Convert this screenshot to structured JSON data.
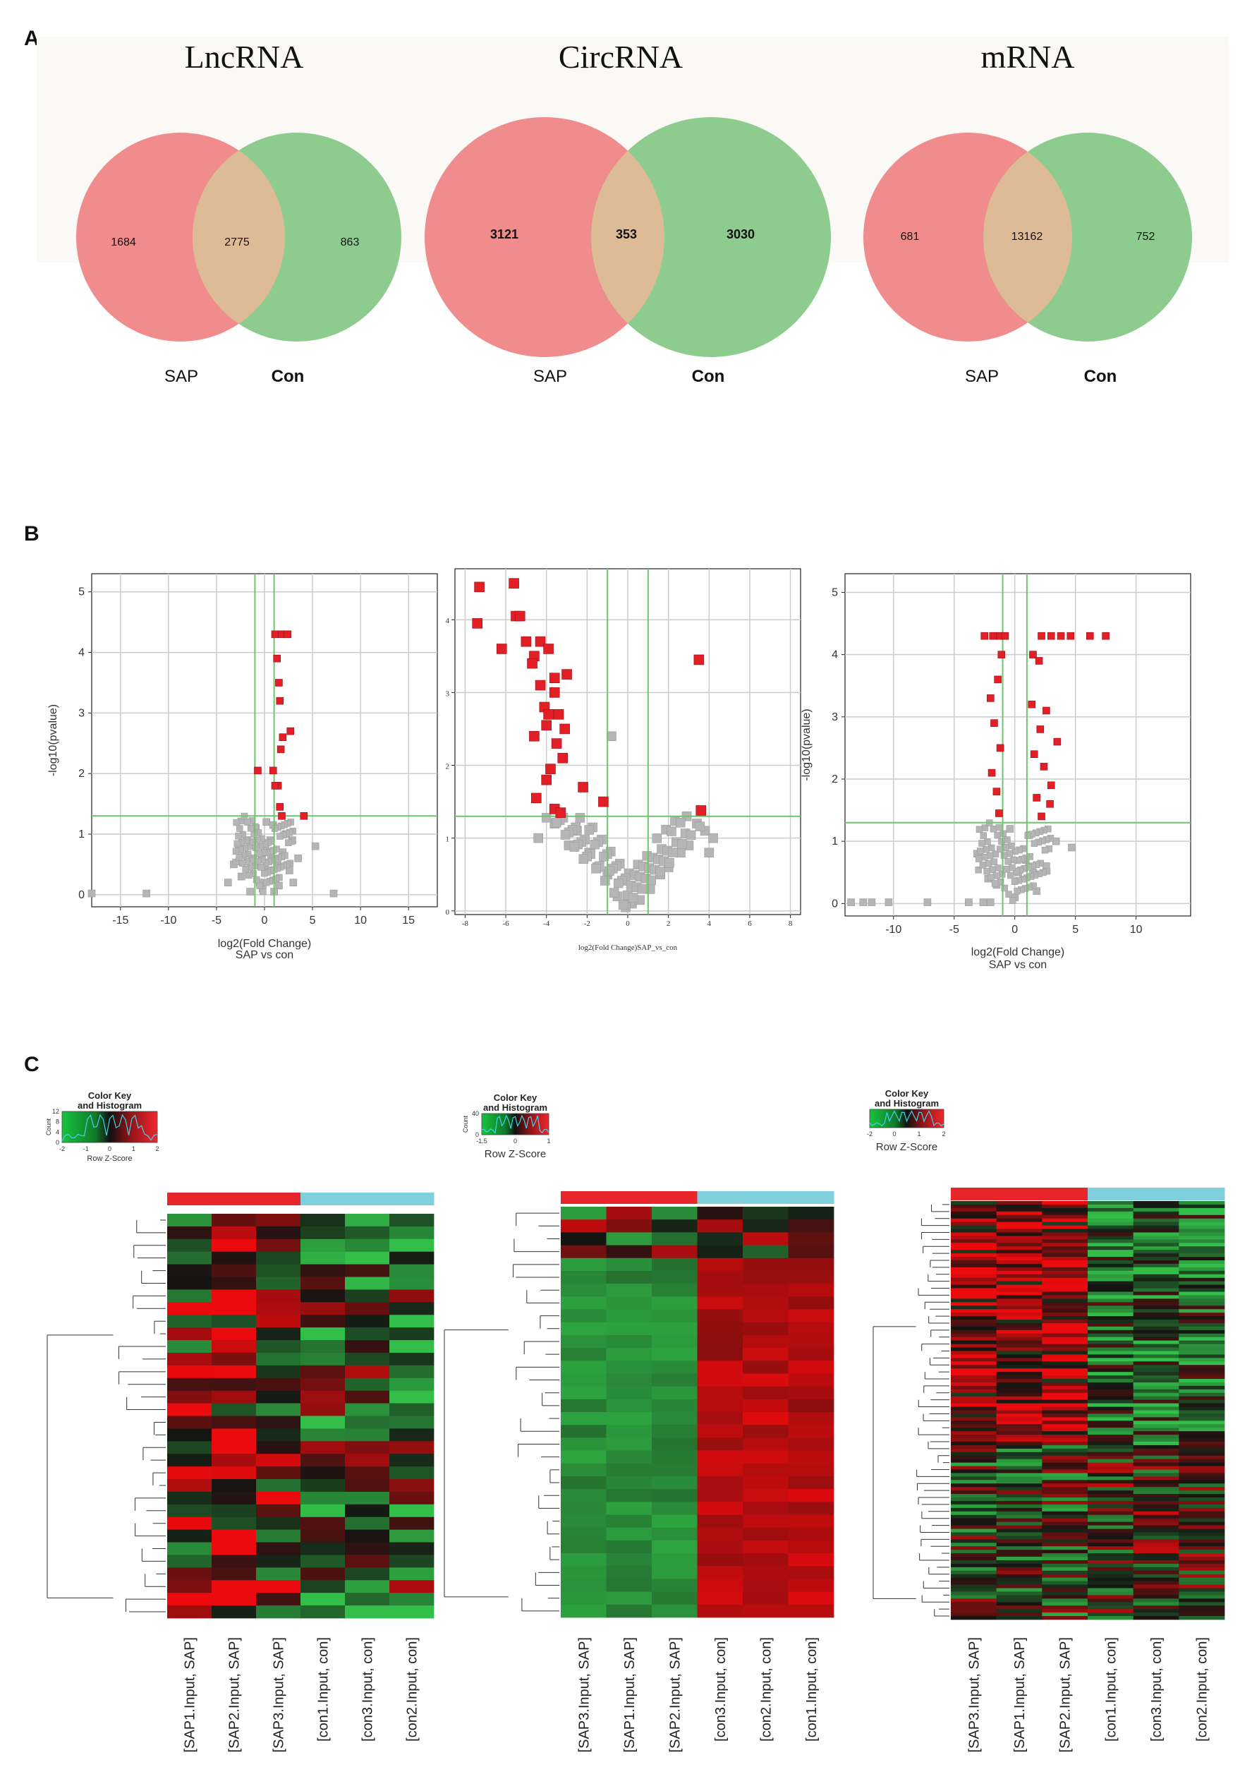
{
  "panel_labels": {
    "a": "A",
    "b": "B",
    "c": "C"
  },
  "chart_data": [
    {
      "type": "venn",
      "title": "LncRNA",
      "sets": [
        "SAP",
        "Con"
      ],
      "values": {
        "only_left": "1684",
        "both": "2775",
        "only_right": "863"
      },
      "colors": {
        "left": "#f08c8c",
        "right": "#8ecb8e",
        "overlap": "#ddbb96"
      }
    },
    {
      "type": "venn",
      "title": "CircRNA",
      "sets": [
        "SAP",
        "Con"
      ],
      "values": {
        "only_left": "3121",
        "both": "353",
        "only_right": "3030"
      },
      "colors": {
        "left": "#f08c8c",
        "right": "#8ecb8e",
        "overlap": "#ddbb96"
      }
    },
    {
      "type": "venn",
      "title": "mRNA",
      "sets": [
        "SAP",
        "Con"
      ],
      "values": {
        "only_left": "681",
        "both": "13162",
        "only_right": "752"
      },
      "colors": {
        "left": "#f08c8c",
        "right": "#8ecb8e",
        "overlap": "#ddbb96"
      }
    },
    {
      "type": "scatter",
      "subtype": "volcano",
      "ylabel": "-log10(pvalue)",
      "xlabel": "log2(Fold Change)",
      "xlabel2": "SAP vs con",
      "xlim": [
        -18,
        18
      ],
      "ylim": [
        -0.2,
        5.3
      ],
      "xticks": [
        "-15",
        "-10",
        "-5",
        "0",
        "5",
        "10",
        "15"
      ],
      "yticks": [
        "0",
        "1",
        "2",
        "3",
        "4",
        "5"
      ],
      "thresholds": {
        "x": [
          -1,
          1
        ],
        "y": 1.3
      },
      "significant": [
        [
          1.1,
          4.3
        ],
        [
          1.8,
          4.3
        ],
        [
          2.4,
          4.3
        ],
        [
          1.3,
          3.9
        ],
        [
          1.5,
          3.5
        ],
        [
          1.6,
          3.2
        ],
        [
          2.7,
          2.7
        ],
        [
          1.9,
          2.6
        ],
        [
          1.7,
          2.4
        ],
        [
          -0.7,
          2.05
        ],
        [
          0.9,
          2.05
        ],
        [
          1.4,
          1.8
        ],
        [
          1.1,
          1.8
        ],
        [
          1.6,
          1.45
        ],
        [
          4.1,
          1.3
        ],
        [
          1.8,
          1.3
        ]
      ],
      "points": [
        [
          -18,
          0.02
        ],
        [
          -12.3,
          0.02
        ],
        [
          7.2,
          0.02
        ],
        [
          0.1,
          0.8
        ],
        [
          -1.2,
          0.6
        ],
        [
          1.3,
          0.5
        ],
        [
          -2.4,
          0.3
        ],
        [
          2.6,
          0.4
        ],
        [
          -0.5,
          0.2
        ],
        [
          0.6,
          0.9
        ],
        [
          -1.8,
          0.9
        ],
        [
          1.9,
          0.7
        ],
        [
          3.5,
          0.6
        ],
        [
          -3.2,
          0.5
        ],
        [
          0.2,
          1.2
        ],
        [
          0.9,
          1.15
        ],
        [
          -0.2,
          0.1
        ],
        [
          1.5,
          0.15
        ],
        [
          -1.5,
          0.05
        ],
        [
          2.2,
          1.0
        ],
        [
          5.3,
          0.8
        ],
        [
          -3.8,
          0.2
        ],
        [
          0.4,
          0.4
        ],
        [
          -0.9,
          1.1
        ],
        [
          3.0,
          0.2
        ],
        [
          1.0,
          0.05
        ],
        [
          -2.7,
          0.8
        ],
        [
          2.9,
          0.9
        ],
        [
          0.7,
          0.6
        ],
        [
          -0.3,
          0.6
        ]
      ],
      "colors": {
        "significant": "#e21f26",
        "nonsig": "#b5b5b5",
        "threshold": "#6dc56d",
        "grid": "#cccccc"
      }
    },
    {
      "type": "scatter",
      "subtype": "volcano",
      "ylabel": "",
      "xlabel": "log2(Fold Change)SAP_vs_con",
      "xlabel2": "",
      "xlim": [
        -8.5,
        8.5
      ],
      "ylim": [
        -0.05,
        4.7
      ],
      "xticks": [
        "-8",
        "-6",
        "-4",
        "-2",
        "0",
        "2",
        "4",
        "6",
        "8"
      ],
      "yticks": [
        "0",
        "1",
        "2",
        "3",
        "4"
      ],
      "thresholds": {
        "x": [
          -1,
          1
        ],
        "y": 1.3
      },
      "significant": [
        [
          -7.3,
          4.45
        ],
        [
          -5.6,
          4.5
        ],
        [
          -7.4,
          3.95
        ],
        [
          -5.5,
          4.05
        ],
        [
          -5.3,
          4.05
        ],
        [
          -6.2,
          3.6
        ],
        [
          -5.0,
          3.7
        ],
        [
          -4.3,
          3.7
        ],
        [
          -4.6,
          3.5
        ],
        [
          -3.9,
          3.6
        ],
        [
          -4.7,
          3.4
        ],
        [
          -3.6,
          3.2
        ],
        [
          -4.3,
          3.1
        ],
        [
          -3.0,
          3.25
        ],
        [
          -3.6,
          3.0
        ],
        [
          -4.1,
          2.8
        ],
        [
          -3.9,
          2.7
        ],
        [
          -3.4,
          2.7
        ],
        [
          -4.0,
          2.55
        ],
        [
          -3.1,
          2.5
        ],
        [
          -4.6,
          2.4
        ],
        [
          -3.5,
          2.3
        ],
        [
          -3.2,
          2.1
        ],
        [
          -3.8,
          1.95
        ],
        [
          -4.0,
          1.8
        ],
        [
          -2.2,
          1.7
        ],
        [
          -4.5,
          1.55
        ],
        [
          -1.2,
          1.5
        ],
        [
          -3.6,
          1.4
        ],
        [
          -3.3,
          1.35
        ],
        [
          3.5,
          3.45
        ],
        [
          3.6,
          1.38
        ]
      ],
      "points": [
        [
          -0.8,
          2.4
        ],
        [
          -2.5,
          1.1
        ],
        [
          -1.9,
          0.8
        ],
        [
          -1.0,
          0.5
        ],
        [
          0.2,
          0.1
        ],
        [
          1.1,
          0.3
        ],
        [
          2.0,
          0.6
        ],
        [
          3.0,
          0.9
        ],
        [
          3.8,
          1.1
        ],
        [
          4.2,
          1.0
        ],
        [
          -3.6,
          1.2
        ],
        [
          -4.4,
          1.0
        ],
        [
          -0.5,
          0.2
        ],
        [
          0.6,
          0.15
        ],
        [
          2.6,
          0.8
        ],
        [
          -1.5,
          0.6
        ],
        [
          -2.9,
          0.9
        ],
        [
          3.4,
          1.2
        ],
        [
          1.6,
          0.5
        ],
        [
          -0.1,
          0.05
        ],
        [
          2.9,
          1.3
        ],
        [
          4.0,
          0.8
        ]
      ],
      "colors": {
        "significant": "#e21f26",
        "nonsig": "#b5b5b5",
        "threshold": "#6dc56d",
        "grid": "#cccccc"
      }
    },
    {
      "type": "scatter",
      "subtype": "volcano",
      "ylabel": "-log10(pvalue)",
      "xlabel": "log2(Fold Change)",
      "xlabel2": "SAP vs con",
      "xlim": [
        -14,
        14.5
      ],
      "ylim": [
        -0.2,
        5.3
      ],
      "xticks": [
        "-10",
        "-5",
        "0",
        "5",
        "10"
      ],
      "yticks": [
        "0",
        "1",
        "2",
        "3",
        "4",
        "5"
      ],
      "thresholds": {
        "x": [
          -1,
          1
        ],
        "y": 1.3
      },
      "significant": [
        [
          -2.5,
          4.3
        ],
        [
          -1.8,
          4.3
        ],
        [
          -1.2,
          4.3
        ],
        [
          -0.8,
          4.3
        ],
        [
          2.2,
          4.3
        ],
        [
          3.0,
          4.3
        ],
        [
          3.8,
          4.3
        ],
        [
          4.6,
          4.3
        ],
        [
          6.2,
          4.3
        ],
        [
          7.5,
          4.3
        ],
        [
          -1.1,
          4.0
        ],
        [
          1.5,
          4.0
        ],
        [
          2.0,
          3.9
        ],
        [
          -1.4,
          3.6
        ],
        [
          -2.0,
          3.3
        ],
        [
          1.4,
          3.2
        ],
        [
          2.6,
          3.1
        ],
        [
          -1.7,
          2.9
        ],
        [
          2.1,
          2.8
        ],
        [
          3.5,
          2.6
        ],
        [
          -1.2,
          2.5
        ],
        [
          1.6,
          2.4
        ],
        [
          2.4,
          2.2
        ],
        [
          -1.9,
          2.1
        ],
        [
          3.0,
          1.9
        ],
        [
          -1.5,
          1.8
        ],
        [
          1.8,
          1.7
        ],
        [
          2.9,
          1.6
        ],
        [
          -1.3,
          1.45
        ],
        [
          2.2,
          1.4
        ]
      ],
      "points": [
        [
          -13.5,
          0.02
        ],
        [
          -12.5,
          0.02
        ],
        [
          -11.8,
          0.02
        ],
        [
          -10.4,
          0.02
        ],
        [
          -7.2,
          0.02
        ],
        [
          -3.8,
          0.02
        ],
        [
          -2.6,
          0.02
        ],
        [
          -2.0,
          0.02
        ],
        [
          4.7,
          0.9
        ],
        [
          3.4,
          1.0
        ],
        [
          -3.1,
          0.8
        ],
        [
          0.3,
          0.5
        ],
        [
          -0.8,
          0.9
        ],
        [
          1.2,
          1.1
        ],
        [
          -1.5,
          0.3
        ],
        [
          1.8,
          0.2
        ],
        [
          0.9,
          0.7
        ],
        [
          -0.4,
          1.2
        ],
        [
          2.6,
          0.6
        ],
        [
          -2.2,
          0.4
        ],
        [
          0.0,
          0.1
        ],
        [
          1.5,
          0.5
        ]
      ],
      "colors": {
        "significant": "#e21f26",
        "nonsig": "#b5b5b5",
        "threshold": "#6dc56d",
        "grid": "#cccccc"
      }
    },
    {
      "type": "heatmap",
      "color_key": {
        "title_line1": "Color Key",
        "title_line2": "and Histogram",
        "xlabel": "Row Z-Score",
        "ylabel": "Count",
        "xticks": [
          "-2",
          "-1",
          "0",
          "1",
          "2"
        ],
        "yticks": [
          "0",
          "4",
          "8",
          "12"
        ]
      },
      "columns": [
        "[SAP1.Input, SAP]",
        "[SAP2.Input, SAP]",
        "[SAP3.Input, SAP]",
        "[con1.Input, con]",
        "[con3.Input, con]",
        "[con2.Input, con]"
      ],
      "column_groups": [
        "SAP",
        "SAP",
        "SAP",
        "con",
        "con",
        "con"
      ],
      "group_colors": {
        "SAP": "#e8252b",
        "con": "#7fd0dc"
      },
      "rows": 32
    },
    {
      "type": "heatmap",
      "color_key": {
        "title_line1": "Color Key",
        "title_line2": "and Histogram",
        "xlabel": "Row Z-Score",
        "ylabel": "Count",
        "xticks": [
          "-1.5",
          "0",
          "1"
        ],
        "yticks": [
          "0",
          "40"
        ]
      },
      "columns": [
        "[SAP3.Input, SAP]",
        "[SAP1.Input, SAP]",
        "[SAP2.Input, SAP]",
        "[con3.Input, con]",
        "[con2.Input, con]",
        "[con1.Input, con]"
      ],
      "column_groups": [
        "SAP",
        "SAP",
        "SAP",
        "con",
        "con",
        "con"
      ],
      "group_colors": {
        "SAP": "#e8252b",
        "con": "#7fd0dc"
      },
      "rows": 32
    },
    {
      "type": "heatmap",
      "color_key": {
        "title_line1": "Color Key",
        "title_line2": "and Histogram",
        "xlabel": "Row Z-Score",
        "ylabel": "",
        "xticks": [
          "-2",
          "0",
          "1",
          "2"
        ],
        "yticks": []
      },
      "columns": [
        "[SAP3.Input, SAP]",
        "[SAP1.Input, SAP]",
        "[SAP2.Input, SAP]",
        "[con1.Input, con]",
        "[con3.Input, con]",
        "[con2.Input, con]"
      ],
      "column_groups": [
        "SAP",
        "SAP",
        "SAP",
        "con",
        "con",
        "con"
      ],
      "group_colors": {
        "SAP": "#e8252b",
        "con": "#7fd0dc"
      },
      "rows": 120
    }
  ]
}
